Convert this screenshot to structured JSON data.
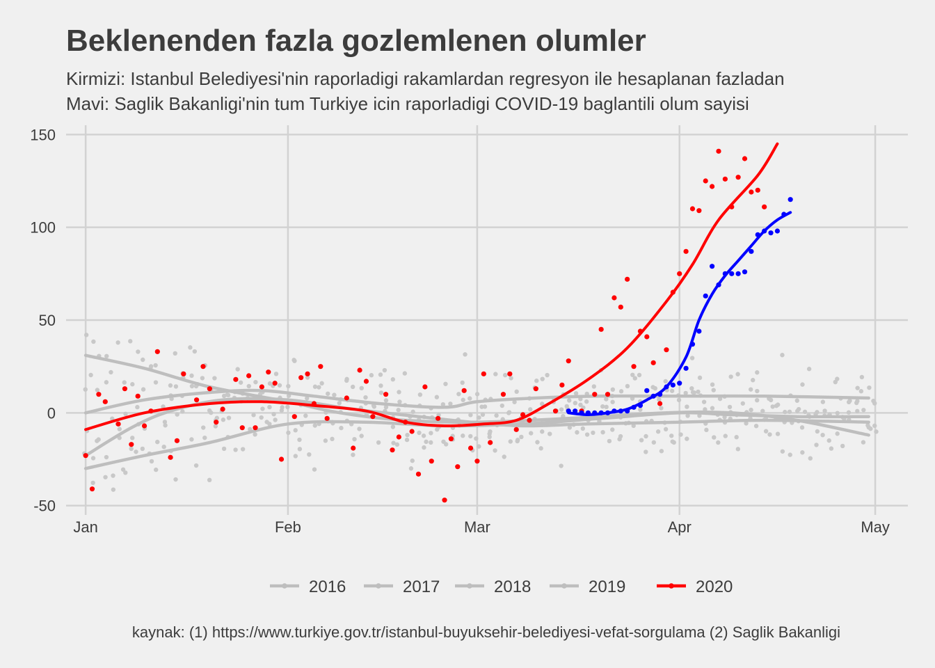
{
  "chart_data": {
    "type": "scatter",
    "title": "Beklenenden fazla gozlemlenen olumler",
    "subtitle_lines": [
      "Kirmizi: Istanbul Belediyesi'nin raporladigi rakamlardan regresyon ile hesaplanan fazladan",
      "Mavi: Saglik Bakanligi'nin tum Turkiye icin raporladigi COVID-19 baglantili olum sayisi"
    ],
    "caption": "kaynak: (1) https://www.turkiye.gov.tr/istanbul-buyuksehir-belediyesi-vefat-sorgulama (2) Saglik Bakanligi",
    "xlabel": "",
    "ylabel": "",
    "x_unit": "day-of-year",
    "xlim": [
      -2,
      127
    ],
    "ylim": [
      -55,
      155
    ],
    "y_ticks": [
      -50,
      0,
      50,
      100,
      150
    ],
    "x_ticks": [
      {
        "day": 1,
        "label": "Jan"
      },
      {
        "day": 32,
        "label": "Feb"
      },
      {
        "day": 61,
        "label": "Mar"
      },
      {
        "day": 92,
        "label": "Apr"
      },
      {
        "day": 122,
        "label": "May"
      }
    ],
    "grid": true,
    "legend_position": "bottom",
    "colors": {
      "baseline": "#bebebe",
      "istanbul": "#ff0000",
      "ministry": "#0000ff"
    },
    "legend": [
      "2016",
      "2017",
      "2018",
      "2019",
      "2020"
    ],
    "series": [
      {
        "name": "2016",
        "color": "#bebebe",
        "curve": [
          [
            1,
            31
          ],
          [
            10,
            24
          ],
          [
            20,
            14
          ],
          [
            32,
            6
          ],
          [
            40,
            0
          ],
          [
            50,
            -4
          ],
          [
            61,
            -5
          ],
          [
            75,
            -3
          ],
          [
            90,
            0
          ],
          [
            100,
            0
          ],
          [
            110,
            -4
          ],
          [
            121,
            -12
          ]
        ]
      },
      {
        "name": "2017",
        "color": "#bebebe",
        "curve": [
          [
            1,
            0
          ],
          [
            10,
            7
          ],
          [
            20,
            11
          ],
          [
            28,
            12
          ],
          [
            36,
            9
          ],
          [
            46,
            5
          ],
          [
            56,
            3
          ],
          [
            61,
            6
          ],
          [
            70,
            8
          ],
          [
            80,
            9
          ],
          [
            92,
            9
          ],
          [
            105,
            9
          ],
          [
            121,
            8
          ]
        ]
      },
      {
        "name": "2018",
        "color": "#bebebe",
        "curve": [
          [
            1,
            -23
          ],
          [
            8,
            -8
          ],
          [
            14,
            1
          ],
          [
            22,
            7
          ],
          [
            32,
            7
          ],
          [
            42,
            2
          ],
          [
            52,
            -2
          ],
          [
            60,
            -5
          ],
          [
            68,
            -7
          ],
          [
            78,
            -6
          ],
          [
            92,
            -5
          ],
          [
            105,
            -4
          ],
          [
            121,
            -5
          ]
        ]
      },
      {
        "name": "2019",
        "color": "#bebebe",
        "curve": [
          [
            1,
            -30
          ],
          [
            10,
            -23
          ],
          [
            20,
            -16
          ],
          [
            32,
            -6
          ],
          [
            44,
            -5
          ],
          [
            56,
            -7
          ],
          [
            68,
            -6
          ],
          [
            80,
            -3
          ],
          [
            92,
            0
          ],
          [
            100,
            -1
          ],
          [
            110,
            -2
          ],
          [
            121,
            -2
          ]
        ]
      },
      {
        "name": "2020",
        "color": "#ff0000",
        "curve": [
          [
            1,
            -9
          ],
          [
            10,
            0
          ],
          [
            20,
            5
          ],
          [
            28,
            6
          ],
          [
            36,
            4
          ],
          [
            44,
            1
          ],
          [
            50,
            -5
          ],
          [
            56,
            -7
          ],
          [
            62,
            -6
          ],
          [
            67,
            -4
          ],
          [
            72,
            5
          ],
          [
            78,
            18
          ],
          [
            84,
            35
          ],
          [
            90,
            60
          ],
          [
            94,
            80
          ],
          [
            98,
            104
          ],
          [
            104,
            128
          ],
          [
            107,
            145
          ]
        ],
        "points": [
          [
            1,
            -23
          ],
          [
            2,
            -41
          ],
          [
            3,
            10
          ],
          [
            4,
            6
          ],
          [
            6,
            -6
          ],
          [
            7,
            13
          ],
          [
            8,
            -17
          ],
          [
            9,
            9
          ],
          [
            10,
            -7
          ],
          [
            11,
            1
          ],
          [
            12,
            33
          ],
          [
            14,
            -24
          ],
          [
            15,
            -15
          ],
          [
            16,
            21
          ],
          [
            18,
            7
          ],
          [
            19,
            25
          ],
          [
            20,
            13
          ],
          [
            21,
            -5
          ],
          [
            22,
            2
          ],
          [
            24,
            18
          ],
          [
            25,
            -8
          ],
          [
            26,
            20
          ],
          [
            27,
            -8
          ],
          [
            28,
            14
          ],
          [
            29,
            22
          ],
          [
            30,
            16
          ],
          [
            31,
            -25
          ],
          [
            33,
            -2
          ],
          [
            34,
            19
          ],
          [
            35,
            21
          ],
          [
            36,
            5
          ],
          [
            37,
            25
          ],
          [
            38,
            -3
          ],
          [
            41,
            8
          ],
          [
            42,
            -19
          ],
          [
            43,
            23
          ],
          [
            44,
            17
          ],
          [
            45,
            -2
          ],
          [
            47,
            10
          ],
          [
            48,
            -20
          ],
          [
            49,
            -13
          ],
          [
            50,
            -5
          ],
          [
            51,
            -10
          ],
          [
            52,
            -33
          ],
          [
            53,
            14
          ],
          [
            54,
            -26
          ],
          [
            55,
            -3
          ],
          [
            56,
            -47
          ],
          [
            57,
            -14
          ],
          [
            58,
            -29
          ],
          [
            59,
            12
          ],
          [
            60,
            -19
          ],
          [
            61,
            -26
          ],
          [
            62,
            21
          ],
          [
            63,
            -16
          ],
          [
            65,
            10
          ],
          [
            66,
            21
          ],
          [
            67,
            -9
          ],
          [
            68,
            -1
          ],
          [
            69,
            -4
          ],
          [
            70,
            13
          ],
          [
            73,
            1
          ],
          [
            74,
            15
          ],
          [
            75,
            28
          ],
          [
            77,
            1
          ],
          [
            79,
            10
          ],
          [
            80,
            45
          ],
          [
            81,
            10
          ],
          [
            82,
            62
          ],
          [
            83,
            57
          ],
          [
            84,
            72
          ],
          [
            85,
            25
          ],
          [
            86,
            44
          ],
          [
            87,
            41
          ],
          [
            88,
            27
          ],
          [
            89,
            5
          ],
          [
            90,
            34
          ],
          [
            91,
            65
          ],
          [
            92,
            75
          ],
          [
            93,
            87
          ],
          [
            94,
            110
          ],
          [
            95,
            109
          ],
          [
            96,
            125
          ],
          [
            97,
            122
          ],
          [
            98,
            141
          ],
          [
            99,
            126
          ],
          [
            100,
            111
          ],
          [
            101,
            127
          ],
          [
            102,
            137
          ],
          [
            103,
            119
          ],
          [
            104,
            120
          ],
          [
            105,
            111
          ]
        ]
      },
      {
        "name": "",
        "color": "#0000ff",
        "curve": [
          [
            75,
            0
          ],
          [
            78,
            -1
          ],
          [
            81,
            0
          ],
          [
            84,
            2
          ],
          [
            87,
            7
          ],
          [
            90,
            14
          ],
          [
            93,
            30
          ],
          [
            95,
            50
          ],
          [
            97,
            64
          ],
          [
            99,
            74
          ],
          [
            101,
            82
          ],
          [
            103,
            90
          ],
          [
            105,
            98
          ],
          [
            107,
            104
          ],
          [
            109,
            108
          ]
        ],
        "points": [
          [
            75,
            1
          ],
          [
            76,
            1
          ],
          [
            77,
            0
          ],
          [
            78,
            0
          ],
          [
            79,
            0
          ],
          [
            80,
            0
          ],
          [
            81,
            0
          ],
          [
            82,
            1
          ],
          [
            83,
            1
          ],
          [
            84,
            1
          ],
          [
            85,
            3
          ],
          [
            86,
            4
          ],
          [
            87,
            12
          ],
          [
            88,
            9
          ],
          [
            89,
            10
          ],
          [
            90,
            14
          ],
          [
            91,
            15
          ],
          [
            92,
            16
          ],
          [
            93,
            24
          ],
          [
            94,
            37
          ],
          [
            95,
            44
          ],
          [
            96,
            63
          ],
          [
            97,
            79
          ],
          [
            98,
            69
          ],
          [
            99,
            75
          ],
          [
            100,
            75
          ],
          [
            101,
            75
          ],
          [
            102,
            76
          ],
          [
            103,
            87
          ],
          [
            104,
            96
          ],
          [
            105,
            98
          ],
          [
            106,
            97
          ],
          [
            107,
            98
          ],
          [
            108,
            107
          ],
          [
            109,
            115
          ]
        ]
      }
    ]
  }
}
